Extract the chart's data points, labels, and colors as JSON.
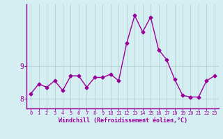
{
  "x": [
    0,
    1,
    2,
    3,
    4,
    5,
    6,
    7,
    8,
    9,
    10,
    11,
    12,
    13,
    14,
    15,
    16,
    17,
    18,
    19,
    20,
    21,
    22,
    23
  ],
  "y": [
    8.15,
    8.45,
    8.35,
    8.55,
    8.25,
    8.7,
    8.7,
    8.35,
    8.65,
    8.65,
    8.75,
    8.55,
    9.7,
    10.55,
    10.05,
    10.5,
    9.5,
    9.2,
    8.6,
    8.1,
    8.05,
    8.05,
    8.55,
    8.7
  ],
  "line_color": "#990099",
  "marker": "D",
  "marker_size": 2.5,
  "line_width": 1,
  "background_color": "#d5eef2",
  "grid_color": "#aacccc",
  "axis_color": "#990099",
  "xlabel": "Windchill (Refroidissement éolien,°C)",
  "ylabel": "",
  "xlim": [
    -0.5,
    23.5
  ],
  "ylim": [
    7.7,
    10.9
  ],
  "yticks": [
    8,
    9
  ],
  "xticks": [
    0,
    1,
    2,
    3,
    4,
    5,
    6,
    7,
    8,
    9,
    10,
    11,
    12,
    13,
    14,
    15,
    16,
    17,
    18,
    19,
    20,
    21,
    22,
    23
  ]
}
